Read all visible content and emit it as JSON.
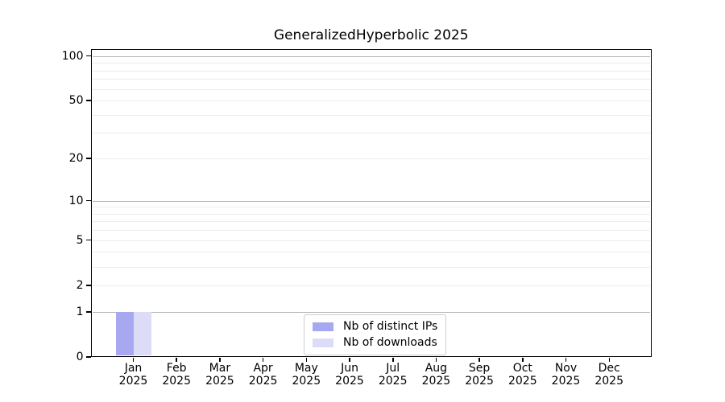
{
  "chart_data": {
    "type": "bar",
    "title": "GeneralizedHyperbolic 2025",
    "categories": [
      "Jan",
      "Feb",
      "Mar",
      "Apr",
      "May",
      "Jun",
      "Jul",
      "Aug",
      "Sep",
      "Oct",
      "Nov",
      "Dec"
    ],
    "category_year": "2025",
    "series": [
      {
        "name": "Nb of distinct IPs",
        "color": "#a8a8f0",
        "values": [
          1,
          0,
          0,
          0,
          0,
          0,
          0,
          0,
          0,
          0,
          0,
          0
        ]
      },
      {
        "name": "Nb of downloads",
        "color": "#dcdcf8",
        "values": [
          1,
          0,
          0,
          0,
          0,
          0,
          0,
          0,
          0,
          0,
          0,
          0
        ]
      }
    ],
    "yscale": "log1p",
    "ylim": [
      0,
      112
    ],
    "yticks": [
      0,
      1,
      2,
      5,
      10,
      20,
      50,
      100
    ],
    "major_gridlines": [
      1,
      10,
      100
    ],
    "minor_gridlines": [
      2,
      3,
      4,
      5,
      6,
      7,
      8,
      9,
      20,
      30,
      40,
      50,
      60,
      70,
      80,
      90
    ],
    "grid": "horizontal only",
    "legend_position": "lower center",
    "colors": {
      "major_grid": "#b5b5b5",
      "minor_grid": "#ececec",
      "axis": "#000000",
      "legend_border": "#cccccc",
      "background": "#ffffff"
    }
  }
}
